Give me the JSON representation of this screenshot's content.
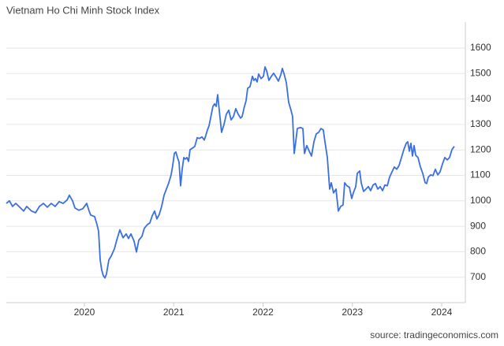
{
  "chart_data": {
    "type": "line",
    "title": "Vietnam Ho Chi Minh Stock Index",
    "source": "source: tradingeconomics.com",
    "color": "#3a6fe2",
    "grid": true,
    "xlim": [
      2019.126,
      2024.265
    ],
    "xticks": [
      2020,
      2021,
      2022,
      2023,
      2024
    ],
    "ylim": [
      600,
      1700
    ],
    "yticks": [
      700,
      800,
      900,
      1000,
      1100,
      1200,
      1300,
      1400,
      1500,
      1600
    ],
    "x": [
      2019.126,
      2019.161,
      2019.196,
      2019.232,
      2019.276,
      2019.32,
      2019.355,
      2019.408,
      2019.453,
      2019.497,
      2019.541,
      2019.585,
      2019.629,
      2019.673,
      2019.717,
      2019.762,
      2019.806,
      2019.832,
      2019.868,
      2019.894,
      2019.938,
      2019.982,
      2020.026,
      2020.053,
      2020.071,
      2020.115,
      2020.141,
      2020.159,
      2020.177,
      2020.194,
      2020.212,
      2020.23,
      2020.247,
      2020.274,
      2020.3,
      2020.336,
      2020.362,
      2020.397,
      2020.433,
      2020.468,
      2020.494,
      2020.521,
      2020.556,
      2020.583,
      2020.609,
      2020.645,
      2020.671,
      2020.706,
      2020.733,
      2020.759,
      2020.786,
      2020.812,
      2020.839,
      2020.865,
      2020.892,
      2020.918,
      2020.945,
      2020.971,
      2020.989,
      2021.007,
      2021.024,
      2021.042,
      2021.06,
      2021.077,
      2021.095,
      2021.113,
      2021.13,
      2021.148,
      2021.166,
      2021.183,
      2021.21,
      2021.236,
      2021.263,
      2021.289,
      2021.316,
      2021.342,
      2021.36,
      2021.377,
      2021.395,
      2021.413,
      2021.439,
      2021.457,
      2021.475,
      2021.492,
      2021.51,
      2021.536,
      2021.563,
      2021.589,
      2021.616,
      2021.642,
      2021.669,
      2021.695,
      2021.722,
      2021.748,
      2021.766,
      2021.792,
      2021.81,
      2021.828,
      2021.854,
      2021.881,
      2021.898,
      2021.916,
      2021.934,
      2021.951,
      2021.978,
      2022.004,
      2022.022,
      2022.04,
      2022.066,
      2022.093,
      2022.119,
      2022.146,
      2022.172,
      2022.199,
      2022.216,
      2022.234,
      2022.261,
      2022.287,
      2022.313,
      2022.331,
      2022.349,
      2022.366,
      2022.384,
      2022.419,
      2022.446,
      2022.464,
      2022.49,
      2022.517,
      2022.543,
      2022.57,
      2022.596,
      2022.623,
      2022.649,
      2022.675,
      2022.693,
      2022.72,
      2022.746,
      2022.764,
      2022.79,
      2022.817,
      2022.843,
      2022.87,
      2022.896,
      2022.914,
      2022.94,
      2022.967,
      2022.993,
      2023.011,
      2023.038,
      2023.055,
      2023.082,
      2023.099,
      2023.126,
      2023.152,
      2023.179,
      2023.205,
      2023.232,
      2023.258,
      2023.285,
      2023.311,
      2023.338,
      2023.364,
      2023.391,
      2023.417,
      2023.444,
      2023.47,
      2023.497,
      2023.523,
      2023.55,
      2023.576,
      2023.603,
      2023.62,
      2023.638,
      2023.656,
      2023.673,
      2023.691,
      2023.709,
      2023.735,
      2023.762,
      2023.788,
      2023.815,
      2023.832,
      2023.85,
      2023.876,
      2023.903,
      2023.929,
      2023.956,
      2023.982,
      2024.009,
      2024.035,
      2024.062,
      2024.088,
      2024.115,
      2024.141
    ],
    "values": [
      990,
      1000,
      978,
      990,
      975,
      960,
      978,
      960,
      953,
      978,
      990,
      975,
      990,
      978,
      997,
      990,
      1003,
      1022,
      1000,
      972,
      963,
      969,
      990,
      960,
      944,
      938,
      907,
      880,
      768,
      728,
      706,
      697,
      712,
      768,
      783,
      811,
      845,
      886,
      855,
      870,
      852,
      870,
      842,
      799,
      845,
      861,
      892,
      907,
      913,
      941,
      960,
      929,
      947,
      978,
      1022,
      1046,
      1071,
      1102,
      1139,
      1186,
      1192,
      1170,
      1152,
      1059,
      1124,
      1170,
      1164,
      1170,
      1155,
      1201,
      1207,
      1214,
      1248,
      1245,
      1251,
      1239,
      1257,
      1278,
      1294,
      1325,
      1371,
      1381,
      1371,
      1417,
      1356,
      1269,
      1300,
      1340,
      1356,
      1318,
      1331,
      1362,
      1340,
      1325,
      1331,
      1371,
      1393,
      1442,
      1448,
      1489,
      1473,
      1480,
      1467,
      1498,
      1480,
      1489,
      1526,
      1511,
      1473,
      1489,
      1501,
      1486,
      1470,
      1495,
      1520,
      1501,
      1464,
      1387,
      1356,
      1331,
      1186,
      1232,
      1284,
      1288,
      1284,
      1186,
      1217,
      1195,
      1176,
      1232,
      1263,
      1269,
      1284,
      1278,
      1232,
      1170,
      1046,
      1071,
      1031,
      1046,
      960,
      978,
      984,
      1071,
      1059,
      1053,
      1009,
      1031,
      1056,
      1108,
      1117,
      1071,
      1037,
      1046,
      1056,
      1040,
      1062,
      1068,
      1046,
      1056,
      1040,
      1062,
      1059,
      1093,
      1114,
      1133,
      1124,
      1139,
      1170,
      1201,
      1226,
      1232,
      1195,
      1226,
      1176,
      1217,
      1179,
      1170,
      1133,
      1108,
      1071,
      1068,
      1093,
      1102,
      1099,
      1124,
      1102,
      1114,
      1145,
      1170,
      1161,
      1170,
      1201,
      1214
    ]
  }
}
